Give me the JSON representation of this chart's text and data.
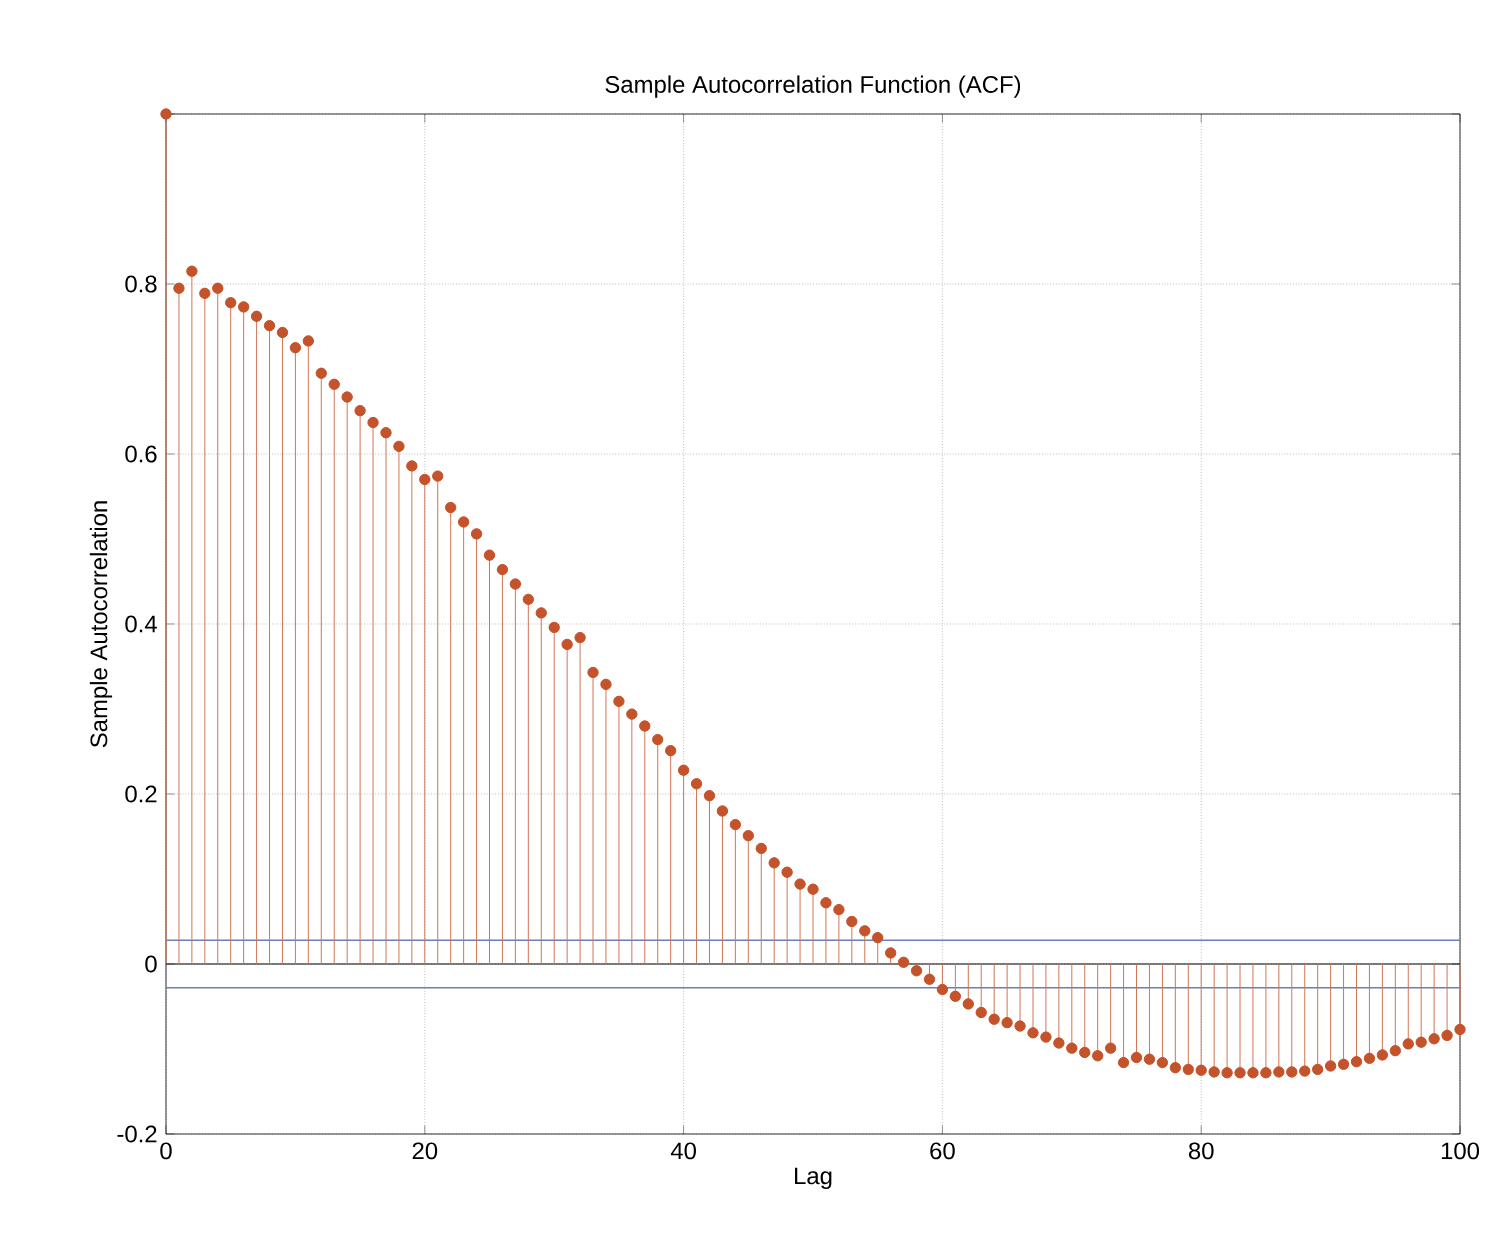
{
  "chart_data": {
    "type": "lollipop",
    "title": "Sample Autocorrelation Function (ACF)",
    "xlabel": "Lag",
    "ylabel": "Sample Autocorrelation",
    "x": [
      0,
      1,
      2,
      3,
      4,
      5,
      6,
      7,
      8,
      9,
      10,
      11,
      12,
      13,
      14,
      15,
      16,
      17,
      18,
      19,
      20,
      21,
      22,
      23,
      24,
      25,
      26,
      27,
      28,
      29,
      30,
      31,
      32,
      33,
      34,
      35,
      36,
      37,
      38,
      39,
      40,
      41,
      42,
      43,
      44,
      45,
      46,
      47,
      48,
      49,
      50,
      51,
      52,
      53,
      54,
      55,
      56,
      57,
      58,
      59,
      60,
      61,
      62,
      63,
      64,
      65,
      66,
      67,
      68,
      69,
      70,
      71,
      72,
      73,
      74,
      75,
      76,
      77,
      78,
      79,
      80,
      81,
      82,
      83,
      84,
      85,
      86,
      87,
      88,
      89,
      90,
      91,
      92,
      93,
      94,
      95,
      96,
      97,
      98,
      99,
      100
    ],
    "values": [
      1.0,
      0.795,
      0.815,
      0.789,
      0.795,
      0.778,
      0.773,
      0.762,
      0.751,
      0.743,
      0.725,
      0.733,
      0.695,
      0.682,
      0.667,
      0.651,
      0.637,
      0.625,
      0.609,
      0.586,
      0.57,
      0.574,
      0.537,
      0.52,
      0.506,
      0.481,
      0.464,
      0.447,
      0.429,
      0.413,
      0.396,
      0.376,
      0.384,
      0.343,
      0.329,
      0.309,
      0.294,
      0.28,
      0.264,
      0.251,
      0.228,
      0.212,
      0.198,
      0.18,
      0.164,
      0.151,
      0.136,
      0.119,
      0.108,
      0.094,
      0.088,
      0.072,
      0.064,
      0.05,
      0.039,
      0.031,
      0.013,
      0.002,
      -0.008,
      -0.018,
      -0.03,
      -0.038,
      -0.047,
      -0.057,
      -0.065,
      -0.069,
      -0.073,
      -0.081,
      -0.086,
      -0.093,
      -0.099,
      -0.104,
      -0.108,
      -0.099,
      -0.116,
      -0.11,
      -0.112,
      -0.116,
      -0.122,
      -0.124,
      -0.125,
      -0.127,
      -0.128,
      -0.128,
      -0.128,
      -0.128,
      -0.127,
      -0.127,
      -0.126,
      -0.124,
      -0.12,
      -0.118,
      -0.115,
      -0.111,
      -0.107,
      -0.102,
      -0.094,
      -0.092,
      -0.088,
      -0.084,
      -0.077
    ],
    "color": "#c4522a",
    "marker": "circle",
    "grid": true,
    "xlim": [
      0,
      100
    ],
    "xticks": [
      0,
      20,
      40,
      60,
      80,
      100
    ],
    "ylim": [
      -0.2,
      1
    ],
    "yticks": [
      -0.2,
      0,
      0.2,
      0.4,
      0.6,
      0.8,
      {
        "value": 1,
        "label": null
      }
    ],
    "ref_lines": [
      {
        "axis": "y",
        "value": 0.028,
        "color": "#6a7fb8"
      },
      {
        "axis": "y",
        "value": -0.028,
        "color": "#6a7fb8"
      }
    ]
  }
}
